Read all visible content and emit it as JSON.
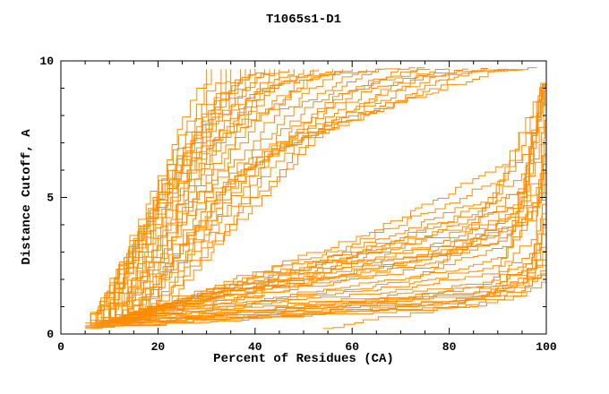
{
  "chart_data": {
    "type": "line",
    "title": "T1065s1-D1",
    "xlabel": "Percent of Residues (CA)",
    "ylabel": "Distance Cutoff, A",
    "xlim": [
      0,
      100
    ],
    "ylim": [
      0,
      10
    ],
    "x_major_ticks": [
      0,
      20,
      40,
      60,
      80,
      100
    ],
    "x_minor_step": 5,
    "y_major_ticks": [
      0,
      5,
      10
    ],
    "y_minor_step": 1,
    "grid": false,
    "legend": "none",
    "line_color": "#FF8C00",
    "frame_color": "#000000",
    "background": "#FFFFFF",
    "series": [
      [
        [
          5,
          0.4
        ],
        [
          8,
          1.2
        ],
        [
          12,
          2.5
        ],
        [
          16,
          4.2
        ],
        [
          20,
          5.8
        ],
        [
          24,
          7.5
        ],
        [
          28,
          9.0
        ],
        [
          30,
          9.7
        ]
      ],
      [
        [
          5,
          0.3
        ],
        [
          9,
          1.5
        ],
        [
          14,
          3.2
        ],
        [
          19,
          5.0
        ],
        [
          24,
          6.8
        ],
        [
          29,
          8.4
        ],
        [
          33,
          9.7
        ]
      ],
      [
        [
          6,
          0.4
        ],
        [
          10,
          1.8
        ],
        [
          15,
          3.5
        ],
        [
          21,
          5.5
        ],
        [
          27,
          7.4
        ],
        [
          32,
          8.8
        ],
        [
          35,
          9.7
        ]
      ],
      [
        [
          6,
          0.4
        ],
        [
          9,
          1.4
        ],
        [
          13,
          2.8
        ],
        [
          18,
          4.6
        ],
        [
          22,
          6.2
        ],
        [
          26,
          7.8
        ],
        [
          31,
          9.7
        ]
      ],
      [
        [
          6,
          0.5
        ],
        [
          11,
          2.0
        ],
        [
          17,
          4.0
        ],
        [
          23,
          6.0
        ],
        [
          29,
          7.8
        ],
        [
          35,
          9.2
        ],
        [
          37,
          9.7
        ]
      ],
      [
        [
          7,
          0.5
        ],
        [
          11,
          1.9
        ],
        [
          16,
          3.7
        ],
        [
          22,
          5.7
        ],
        [
          28,
          7.6
        ],
        [
          34,
          9.7
        ]
      ],
      [
        [
          7,
          0.5
        ],
        [
          12,
          2.2
        ],
        [
          18,
          4.3
        ],
        [
          25,
          6.5
        ],
        [
          31,
          8.2
        ],
        [
          38,
          9.7
        ]
      ],
      [
        [
          7,
          0.4
        ],
        [
          13,
          2.4
        ],
        [
          20,
          4.8
        ],
        [
          27,
          7.0
        ],
        [
          34,
          8.8
        ],
        [
          40,
          9.7
        ]
      ],
      [
        [
          8,
          0.5
        ],
        [
          13,
          2.3
        ],
        [
          19,
          4.5
        ],
        [
          26,
          6.7
        ],
        [
          33,
          8.6
        ],
        [
          39,
          9.7
        ]
      ],
      [
        [
          8,
          0.5
        ],
        [
          14,
          2.6
        ],
        [
          22,
          5.2
        ],
        [
          30,
          7.5
        ],
        [
          38,
          9.3
        ],
        [
          42,
          9.7
        ]
      ],
      [
        [
          8,
          0.6
        ],
        [
          15,
          2.8
        ],
        [
          24,
          5.6
        ],
        [
          32,
          7.8
        ],
        [
          40,
          9.4
        ],
        [
          45,
          9.7
        ]
      ],
      [
        [
          9,
          0.6
        ],
        [
          15,
          2.7
        ],
        [
          23,
          5.4
        ],
        [
          31,
          7.7
        ],
        [
          39,
          9.2
        ],
        [
          43,
          9.7
        ]
      ],
      [
        [
          9,
          0.6
        ],
        [
          16,
          3.0
        ],
        [
          26,
          6.0
        ],
        [
          35,
          8.2
        ],
        [
          44,
          9.7
        ]
      ],
      [
        [
          9,
          0.5
        ],
        [
          18,
          3.3
        ],
        [
          28,
          6.4
        ],
        [
          38,
          8.6
        ],
        [
          47,
          9.7
        ]
      ],
      [
        [
          10,
          0.6
        ],
        [
          19,
          3.5
        ],
        [
          29,
          6.6
        ],
        [
          40,
          8.8
        ],
        [
          48,
          9.7
        ]
      ],
      [
        [
          10,
          0.6
        ],
        [
          20,
          3.6
        ],
        [
          30,
          6.8
        ],
        [
          41,
          8.9
        ],
        [
          50,
          9.7
        ]
      ],
      [
        [
          10,
          0.5
        ],
        [
          22,
          4.0
        ],
        [
          33,
          7.2
        ],
        [
          44,
          9.1
        ],
        [
          53,
          9.7
        ]
      ],
      [
        [
          11,
          0.7
        ],
        [
          21,
          3.8
        ],
        [
          32,
          7.0
        ],
        [
          43,
          9.0
        ],
        [
          52,
          9.7
        ]
      ],
      [
        [
          11,
          0.6
        ],
        [
          24,
          4.2
        ],
        [
          36,
          7.4
        ],
        [
          48,
          9.2
        ],
        [
          56,
          9.7
        ]
      ],
      [
        [
          12,
          0.7
        ],
        [
          25,
          4.4
        ],
        [
          38,
          7.6
        ],
        [
          50,
          9.3
        ],
        [
          58,
          9.7
        ]
      ],
      [
        [
          11,
          0.5
        ],
        [
          26,
          4.5
        ],
        [
          40,
          7.8
        ],
        [
          52,
          9.4
        ],
        [
          60,
          9.7
        ]
      ],
      [
        [
          12,
          0.6
        ],
        [
          28,
          4.8
        ],
        [
          44,
          8.0
        ],
        [
          56,
          9.5
        ],
        [
          63,
          9.7
        ]
      ],
      [
        [
          12,
          0.5
        ],
        [
          30,
          5.0
        ],
        [
          48,
          8.3
        ],
        [
          60,
          9.5
        ],
        [
          66,
          9.7
        ]
      ],
      [
        [
          13,
          0.6
        ],
        [
          32,
          5.2
        ],
        [
          52,
          8.5
        ],
        [
          64,
          9.6
        ],
        [
          70,
          9.7
        ]
      ],
      [
        [
          13,
          0.5
        ],
        [
          34,
          5.5
        ],
        [
          56,
          8.7
        ],
        [
          68,
          9.6
        ],
        [
          73,
          9.7
        ]
      ],
      [
        [
          14,
          0.7
        ],
        [
          35,
          5.6
        ],
        [
          58,
          8.8
        ],
        [
          70,
          9.6
        ],
        [
          75,
          9.7
        ]
      ],
      [
        [
          14,
          0.6
        ],
        [
          36,
          5.8
        ],
        [
          60,
          8.9
        ],
        [
          72,
          9.6
        ],
        [
          76,
          9.7
        ]
      ],
      [
        [
          14,
          0.5
        ],
        [
          38,
          6.0
        ],
        [
          64,
          9.0
        ],
        [
          76,
          9.6
        ],
        [
          80,
          9.7
        ]
      ],
      [
        [
          15,
          0.6
        ],
        [
          40,
          6.2
        ],
        [
          68,
          9.1
        ],
        [
          80,
          9.7
        ]
      ],
      [
        [
          15,
          0.5
        ],
        [
          42,
          6.5
        ],
        [
          72,
          9.3
        ],
        [
          84,
          9.7
        ]
      ],
      [
        [
          16,
          0.6
        ],
        [
          45,
          6.8
        ],
        [
          76,
          9.4
        ],
        [
          88,
          9.7
        ]
      ],
      [
        [
          16,
          0.5
        ],
        [
          48,
          7.0
        ],
        [
          80,
          9.5
        ],
        [
          92,
          9.7
        ]
      ],
      [
        [
          17,
          0.6
        ],
        [
          51,
          7.2
        ],
        [
          84,
          9.6
        ],
        [
          95,
          9.7
        ]
      ],
      [
        [
          18,
          0.5
        ],
        [
          54,
          7.5
        ],
        [
          88,
          9.6
        ],
        [
          98,
          9.7
        ]
      ],
      [
        [
          9,
          0.5
        ],
        [
          40,
          1.6
        ],
        [
          70,
          2.5
        ],
        [
          90,
          3.4
        ],
        [
          97,
          4.5
        ],
        [
          100,
          6.0
        ]
      ],
      [
        [
          10,
          0.5
        ],
        [
          45,
          1.8
        ],
        [
          75,
          2.8
        ],
        [
          92,
          3.8
        ],
        [
          100,
          5.2
        ]
      ],
      [
        [
          11,
          0.6
        ],
        [
          50,
          2.1
        ],
        [
          80,
          3.1
        ],
        [
          95,
          4.2
        ],
        [
          100,
          5.6
        ]
      ],
      [
        [
          12,
          0.6
        ],
        [
          55,
          2.4
        ],
        [
          85,
          3.5
        ],
        [
          97,
          4.8
        ],
        [
          100,
          6.4
        ]
      ],
      [
        [
          13,
          0.7
        ],
        [
          60,
          2.8
        ],
        [
          88,
          4.0
        ],
        [
          99,
          5.5
        ],
        [
          100,
          7.0
        ]
      ],
      [
        [
          14,
          0.7
        ],
        [
          65,
          3.1
        ],
        [
          92,
          4.6
        ],
        [
          100,
          7.6
        ]
      ],
      [
        [
          15,
          0.8
        ],
        [
          68,
          3.4
        ],
        [
          94,
          5.2
        ],
        [
          100,
          8.2
        ]
      ],
      [
        [
          5,
          0.25
        ],
        [
          30,
          0.6
        ],
        [
          60,
          0.9
        ],
        [
          85,
          1.3
        ],
        [
          96,
          2.0
        ],
        [
          100,
          3.5
        ]
      ],
      [
        [
          5,
          0.3
        ],
        [
          30,
          0.7
        ],
        [
          60,
          1.0
        ],
        [
          85,
          1.5
        ],
        [
          97,
          2.4
        ],
        [
          100,
          4.2
        ]
      ],
      [
        [
          6,
          0.3
        ],
        [
          32,
          0.8
        ],
        [
          62,
          1.2
        ],
        [
          86,
          1.7
        ],
        [
          97,
          2.8
        ],
        [
          100,
          5.0
        ]
      ],
      [
        [
          6,
          0.35
        ],
        [
          34,
          0.9
        ],
        [
          64,
          1.3
        ],
        [
          87,
          1.9
        ],
        [
          98,
          3.2
        ],
        [
          100,
          5.8
        ]
      ],
      [
        [
          6,
          0.3
        ],
        [
          36,
          1.0
        ],
        [
          66,
          1.5
        ],
        [
          88,
          2.2
        ],
        [
          98,
          3.8
        ],
        [
          100,
          6.5
        ]
      ],
      [
        [
          7,
          0.35
        ],
        [
          38,
          1.1
        ],
        [
          68,
          1.7
        ],
        [
          89,
          2.5
        ],
        [
          98,
          4.5
        ],
        [
          100,
          7.2
        ]
      ],
      [
        [
          7,
          0.4
        ],
        [
          40,
          1.2
        ],
        [
          70,
          1.9
        ],
        [
          90,
          2.8
        ],
        [
          99,
          5.2
        ],
        [
          100,
          7.8
        ]
      ],
      [
        [
          7,
          0.35
        ],
        [
          42,
          1.3
        ],
        [
          72,
          2.1
        ],
        [
          91,
          3.2
        ],
        [
          99,
          6.0
        ],
        [
          100,
          8.4
        ]
      ],
      [
        [
          8,
          0.4
        ],
        [
          44,
          1.5
        ],
        [
          74,
          2.4
        ],
        [
          92,
          3.6
        ],
        [
          99,
          6.8
        ],
        [
          100,
          9.0
        ]
      ],
      [
        [
          8,
          0.45
        ],
        [
          46,
          1.6
        ],
        [
          76,
          2.6
        ],
        [
          93,
          4.0
        ],
        [
          100,
          9.5
        ]
      ],
      [
        [
          8,
          0.4
        ],
        [
          48,
          1.8
        ],
        [
          78,
          2.9
        ],
        [
          94,
          4.5
        ],
        [
          100,
          9.7
        ]
      ],
      [
        [
          9,
          0.45
        ],
        [
          50,
          2.0
        ],
        [
          80,
          3.2
        ],
        [
          95,
          5.0
        ],
        [
          100,
          9.7
        ]
      ],
      [
        [
          9,
          0.5
        ],
        [
          52,
          2.2
        ],
        [
          82,
          3.6
        ],
        [
          96,
          5.6
        ],
        [
          100,
          9.7
        ]
      ],
      [
        [
          10,
          0.5
        ],
        [
          54,
          2.4
        ],
        [
          84,
          4.0
        ],
        [
          96,
          6.2
        ],
        [
          100,
          9.7
        ]
      ],
      [
        [
          10,
          0.55
        ],
        [
          56,
          2.7
        ],
        [
          86,
          4.5
        ],
        [
          97,
          7.0
        ],
        [
          100,
          9.7
        ]
      ],
      [
        [
          11,
          0.6
        ],
        [
          58,
          3.0
        ],
        [
          88,
          5.0
        ],
        [
          98,
          7.8
        ],
        [
          100,
          9.7
        ]
      ],
      [
        [
          12,
          0.6
        ],
        [
          60,
          3.3
        ],
        [
          90,
          5.6
        ],
        [
          98,
          8.5
        ],
        [
          100,
          9.7
        ]
      ],
      [
        [
          13,
          0.65
        ],
        [
          62,
          3.6
        ],
        [
          91,
          6.2
        ],
        [
          99,
          9.0
        ],
        [
          100,
          9.7
        ]
      ],
      [
        [
          5,
          0.2
        ],
        [
          40,
          0.55
        ],
        [
          75,
          0.85
        ],
        [
          92,
          1.2
        ],
        [
          99,
          1.9
        ],
        [
          100,
          2.6
        ]
      ],
      [
        [
          6,
          0.25
        ],
        [
          42,
          0.6
        ],
        [
          78,
          0.95
        ],
        [
          93,
          1.35
        ],
        [
          99,
          2.2
        ],
        [
          100,
          3.0
        ]
      ],
      [
        [
          6,
          0.2
        ],
        [
          45,
          0.65
        ],
        [
          80,
          1.05
        ],
        [
          94,
          1.5
        ],
        [
          100,
          2.4
        ]
      ],
      [
        [
          7,
          0.3
        ],
        [
          48,
          0.75
        ],
        [
          82,
          1.15
        ],
        [
          95,
          1.7
        ],
        [
          100,
          2.7
        ]
      ],
      [
        [
          7,
          0.25
        ],
        [
          50,
          0.8
        ],
        [
          84,
          1.25
        ],
        [
          95,
          1.9
        ],
        [
          100,
          3.2
        ]
      ],
      [
        [
          8,
          0.3
        ],
        [
          52,
          0.9
        ],
        [
          86,
          1.4
        ],
        [
          96,
          2.1
        ],
        [
          100,
          3.8
        ]
      ],
      [
        [
          8,
          0.35
        ],
        [
          55,
          1.0
        ],
        [
          87,
          1.55
        ],
        [
          96,
          2.4
        ],
        [
          100,
          4.4
        ]
      ],
      [
        [
          9,
          0.4
        ],
        [
          58,
          1.1
        ],
        [
          89,
          1.75
        ],
        [
          97,
          2.7
        ],
        [
          100,
          4.8
        ]
      ],
      [
        [
          54,
          0.2
        ],
        [
          80,
          1.0
        ],
        [
          93,
          1.8
        ],
        [
          100,
          2.8
        ]
      ]
    ]
  }
}
